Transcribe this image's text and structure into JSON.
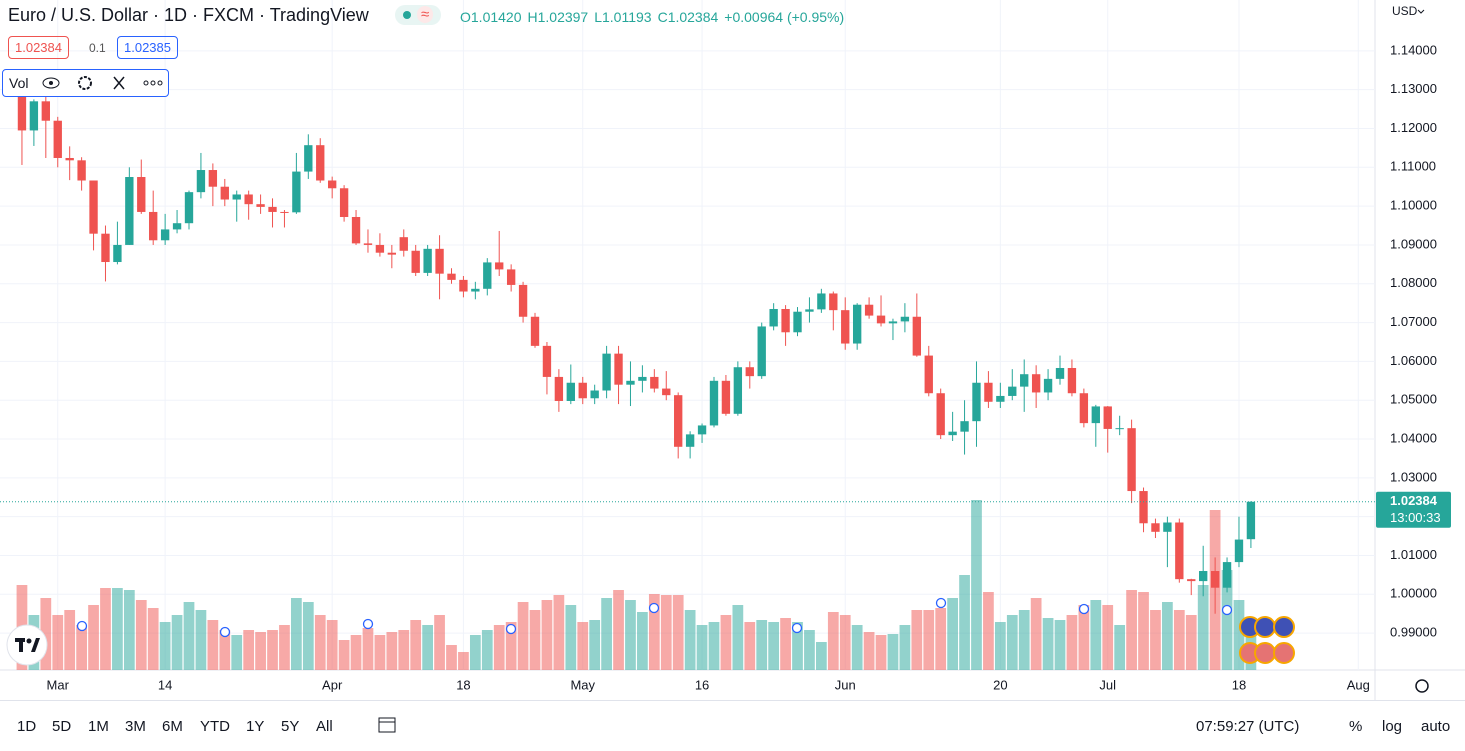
{
  "header": {
    "title": "Euro / U.S. Dollar · 1D · FXCM · TradingView",
    "ohlc": [
      "O1.01420",
      "H1.02397",
      "L1.01193",
      "C1.02384",
      "+0.00964 (+0.95%)"
    ],
    "bid": "1.02384",
    "spread": "0.1",
    "ask": "1.02385",
    "indicator": "Vol"
  },
  "price_axis": {
    "currency": "USD",
    "countdown": "13:00:33"
  },
  "toolbar": {
    "ranges": [
      "1D",
      "5D",
      "1M",
      "3M",
      "6M",
      "YTD",
      "1Y",
      "5Y",
      "All"
    ],
    "clock": "07:59:27 (UTC)",
    "options": [
      "%",
      "log",
      "auto"
    ]
  },
  "chart_data": {
    "type": "candlestick",
    "up_color": "#26a69a",
    "down_color": "#ef5350",
    "grid": true,
    "ohlc": [
      [
        1.1307,
        1.1308,
        1.1106,
        1.1195
      ],
      [
        1.1195,
        1.1275,
        1.1155,
        1.127
      ],
      [
        1.127,
        1.129,
        1.1124,
        1.122
      ],
      [
        1.122,
        1.123,
        1.11,
        1.1124
      ],
      [
        1.1124,
        1.1154,
        1.1067,
        1.1118
      ],
      [
        1.1118,
        1.1126,
        1.104,
        1.1066
      ],
      [
        1.1066,
        1.1066,
        1.0886,
        1.0929
      ],
      [
        1.0929,
        1.095,
        1.0806,
        1.0856
      ],
      [
        1.0856,
        1.096,
        1.085,
        1.09
      ],
      [
        1.09,
        1.11,
        1.09,
        1.1075
      ],
      [
        1.1075,
        1.112,
        1.098,
        1.0985
      ],
      [
        1.0985,
        1.104,
        1.09,
        1.0912
      ],
      [
        1.0912,
        1.098,
        1.09,
        1.094
      ],
      [
        1.094,
        1.099,
        1.093,
        1.0956
      ],
      [
        1.0956,
        1.104,
        1.094,
        1.1036
      ],
      [
        1.1036,
        1.1137,
        1.102,
        1.1093
      ],
      [
        1.1093,
        1.111,
        1.1,
        1.105
      ],
      [
        1.105,
        1.107,
        1.1,
        1.1017
      ],
      [
        1.1017,
        1.104,
        1.096,
        1.103
      ],
      [
        1.103,
        1.104,
        1.0965,
        1.1005
      ],
      [
        1.1005,
        1.103,
        1.098,
        1.0998
      ],
      [
        1.0998,
        1.102,
        1.0945,
        1.0985
      ],
      [
        1.0985,
        1.099,
        1.0945,
        1.0984
      ],
      [
        1.0984,
        1.1137,
        1.098,
        1.1089
      ],
      [
        1.1089,
        1.1185,
        1.107,
        1.1157
      ],
      [
        1.1157,
        1.1175,
        1.106,
        1.1066
      ],
      [
        1.1066,
        1.1076,
        1.102,
        1.1046
      ],
      [
        1.1046,
        1.1054,
        1.096,
        1.0972
      ],
      [
        1.0972,
        1.099,
        1.09,
        1.0904
      ],
      [
        1.0904,
        1.094,
        1.088,
        1.09
      ],
      [
        1.09,
        1.093,
        1.087,
        1.088
      ],
      [
        1.088,
        1.09,
        1.084,
        1.0875
      ],
      [
        1.092,
        1.094,
        1.087,
        1.0885
      ],
      [
        1.0885,
        1.09,
        1.082,
        1.0828
      ],
      [
        1.0828,
        1.09,
        1.082,
        1.089
      ],
      [
        1.089,
        1.0925,
        1.076,
        1.0826
      ],
      [
        1.0826,
        1.084,
        1.08,
        1.081
      ],
      [
        1.081,
        1.082,
        1.0765,
        1.078
      ],
      [
        1.078,
        1.0805,
        1.076,
        1.0787
      ],
      [
        1.0787,
        1.0866,
        1.077,
        1.0855
      ],
      [
        1.0855,
        1.0936,
        1.082,
        1.0837
      ],
      [
        1.0837,
        1.085,
        1.078,
        1.0797
      ],
      [
        1.0797,
        1.0805,
        1.07,
        1.0715
      ],
      [
        1.0715,
        1.0725,
        1.0635,
        1.064
      ],
      [
        1.064,
        1.065,
        1.0515,
        1.056
      ],
      [
        1.056,
        1.058,
        1.047,
        1.0498
      ],
      [
        1.0498,
        1.0592,
        1.049,
        1.0545
      ],
      [
        1.0545,
        1.056,
        1.049,
        1.0505
      ],
      [
        1.0505,
        1.054,
        1.049,
        1.0525
      ],
      [
        1.0525,
        1.064,
        1.0505,
        1.062
      ],
      [
        1.062,
        1.064,
        1.049,
        1.054
      ],
      [
        1.054,
        1.06,
        1.0485,
        1.055
      ],
      [
        1.055,
        1.059,
        1.052,
        1.056
      ],
      [
        1.056,
        1.058,
        1.052,
        1.053
      ],
      [
        1.053,
        1.0575,
        1.05,
        1.0513
      ],
      [
        1.0513,
        1.052,
        1.035,
        1.038
      ],
      [
        1.038,
        1.042,
        1.035,
        1.0412
      ],
      [
        1.0412,
        1.044,
        1.039,
        1.0435
      ],
      [
        1.0435,
        1.056,
        1.043,
        1.055
      ],
      [
        1.055,
        1.0565,
        1.046,
        1.0465
      ],
      [
        1.0465,
        1.06,
        1.046,
        1.0585
      ],
      [
        1.0585,
        1.06,
        1.053,
        1.0562
      ],
      [
        1.0562,
        1.07,
        1.0555,
        1.069
      ],
      [
        1.069,
        1.075,
        1.068,
        1.0735
      ],
      [
        1.0735,
        1.0745,
        1.064,
        1.0675
      ],
      [
        1.0675,
        1.074,
        1.0665,
        1.0728
      ],
      [
        1.0728,
        1.0765,
        1.07,
        1.0734
      ],
      [
        1.0734,
        1.0787,
        1.0725,
        1.0775
      ],
      [
        1.0775,
        1.078,
        1.068,
        1.0732
      ],
      [
        1.0732,
        1.0765,
        1.063,
        1.0646
      ],
      [
        1.0646,
        1.075,
        1.063,
        1.0746
      ],
      [
        1.0746,
        1.0765,
        1.071,
        1.0718
      ],
      [
        1.0718,
        1.077,
        1.069,
        1.0698
      ],
      [
        1.0698,
        1.071,
        1.0655,
        1.0703
      ],
      [
        1.0703,
        1.075,
        1.0675,
        1.0715
      ],
      [
        1.0715,
        1.0775,
        1.0612,
        1.0615
      ],
      [
        1.0615,
        1.064,
        1.051,
        1.0518
      ],
      [
        1.0518,
        1.053,
        1.04,
        1.041
      ],
      [
        1.041,
        1.047,
        1.0395,
        1.0419
      ],
      [
        1.0419,
        1.05,
        1.036,
        1.0446
      ],
      [
        1.0446,
        1.06,
        1.038,
        1.0545
      ],
      [
        1.0545,
        1.0575,
        1.048,
        1.0496
      ],
      [
        1.0496,
        1.0545,
        1.048,
        1.0511
      ],
      [
        1.0511,
        1.058,
        1.05,
        1.0535
      ],
      [
        1.0535,
        1.0605,
        1.047,
        1.0567
      ],
      [
        1.0567,
        1.059,
        1.048,
        1.052
      ],
      [
        1.052,
        1.058,
        1.05,
        1.0555
      ],
      [
        1.0555,
        1.0615,
        1.054,
        1.0583
      ],
      [
        1.0583,
        1.0605,
        1.051,
        1.0518
      ],
      [
        1.0518,
        1.053,
        1.043,
        1.0441
      ],
      [
        1.0441,
        1.0488,
        1.038,
        1.0484
      ],
      [
        1.0484,
        1.0485,
        1.0365,
        1.0426
      ],
      [
        1.0426,
        1.046,
        1.041,
        1.0428
      ],
      [
        1.0428,
        1.045,
        1.0235,
        1.0266
      ],
      [
        1.0266,
        1.0275,
        1.016,
        1.0183
      ],
      [
        1.0183,
        1.0195,
        1.0145,
        1.0161
      ],
      [
        1.0161,
        1.02,
        1.007,
        1.0185
      ],
      [
        1.0185,
        1.0195,
        1.003,
        1.0039
      ],
      [
        1.0039,
        1.004,
        0.9998,
        1.0034
      ],
      [
        1.0034,
        1.0125,
        0.9995,
        1.006
      ],
      [
        1.006,
        1.0095,
        0.995,
        1.0017
      ],
      [
        1.0017,
        1.0095,
        1.0005,
        1.0083
      ],
      [
        1.0083,
        1.02,
        1.007,
        1.0141
      ],
      [
        1.0142,
        1.02397,
        1.01193,
        1.02384
      ]
    ],
    "volume": [
      85,
      55,
      72,
      55,
      60,
      45,
      65,
      82,
      82,
      80,
      70,
      62,
      48,
      55,
      68,
      60,
      50,
      40,
      35,
      40,
      38,
      40,
      45,
      72,
      68,
      55,
      50,
      30,
      35,
      42,
      35,
      38,
      40,
      50,
      45,
      55,
      25,
      18,
      35,
      40,
      45,
      48,
      68,
      60,
      70,
      75,
      65,
      48,
      50,
      72,
      80,
      70,
      58,
      76,
      75,
      75,
      60,
      45,
      48,
      55,
      65,
      48,
      50,
      48,
      52,
      48,
      40,
      28,
      58,
      55,
      45,
      38,
      35,
      36,
      45,
      60,
      60,
      62,
      72,
      95,
      170,
      78,
      48,
      55,
      60,
      72,
      52,
      50,
      55,
      65,
      70,
      65,
      45,
      80,
      78,
      60,
      68,
      60,
      55,
      85,
      160,
      100,
      70,
      50
    ],
    "volume_ylim": [
      0,
      170
    ],
    "xlim": [
      -1.84,
      113.4
    ],
    "xticks": [
      {
        "value": 3,
        "label": "Mar"
      },
      {
        "value": 12,
        "label": "14"
      },
      {
        "value": 26,
        "label": "Apr"
      },
      {
        "value": 37,
        "label": "18"
      },
      {
        "value": 47,
        "label": "May"
      },
      {
        "value": 57,
        "label": "16"
      },
      {
        "value": 69,
        "label": "Jun"
      },
      {
        "value": 82,
        "label": "20"
      },
      {
        "value": 91,
        "label": "Jul"
      },
      {
        "value": 102,
        "label": "18"
      },
      {
        "value": 112,
        "label": "Aug"
      }
    ],
    "ylim": [
      0.9805,
      1.1531
    ],
    "yticks": [
      {
        "value": 0.99,
        "label": "0.99000"
      },
      {
        "value": 1.0,
        "label": "1.00000"
      },
      {
        "value": 1.01,
        "label": "1.01000"
      },
      {
        "value": 1.02,
        "label": "1.02000"
      },
      {
        "value": 1.03,
        "label": "1.03000"
      },
      {
        "value": 1.04,
        "label": "1.04000"
      },
      {
        "value": 1.05,
        "label": "1.05000"
      },
      {
        "value": 1.06,
        "label": "1.06000"
      },
      {
        "value": 1.07,
        "label": "1.07000"
      },
      {
        "value": 1.08,
        "label": "1.08000"
      },
      {
        "value": 1.09,
        "label": "1.09000"
      },
      {
        "value": 1.1,
        "label": "1.10000"
      },
      {
        "value": 1.11,
        "label": "1.11000"
      },
      {
        "value": 1.12,
        "label": "1.12000"
      },
      {
        "value": 1.13,
        "label": "1.13000"
      },
      {
        "value": 1.14,
        "label": "1.14000"
      }
    ]
  }
}
